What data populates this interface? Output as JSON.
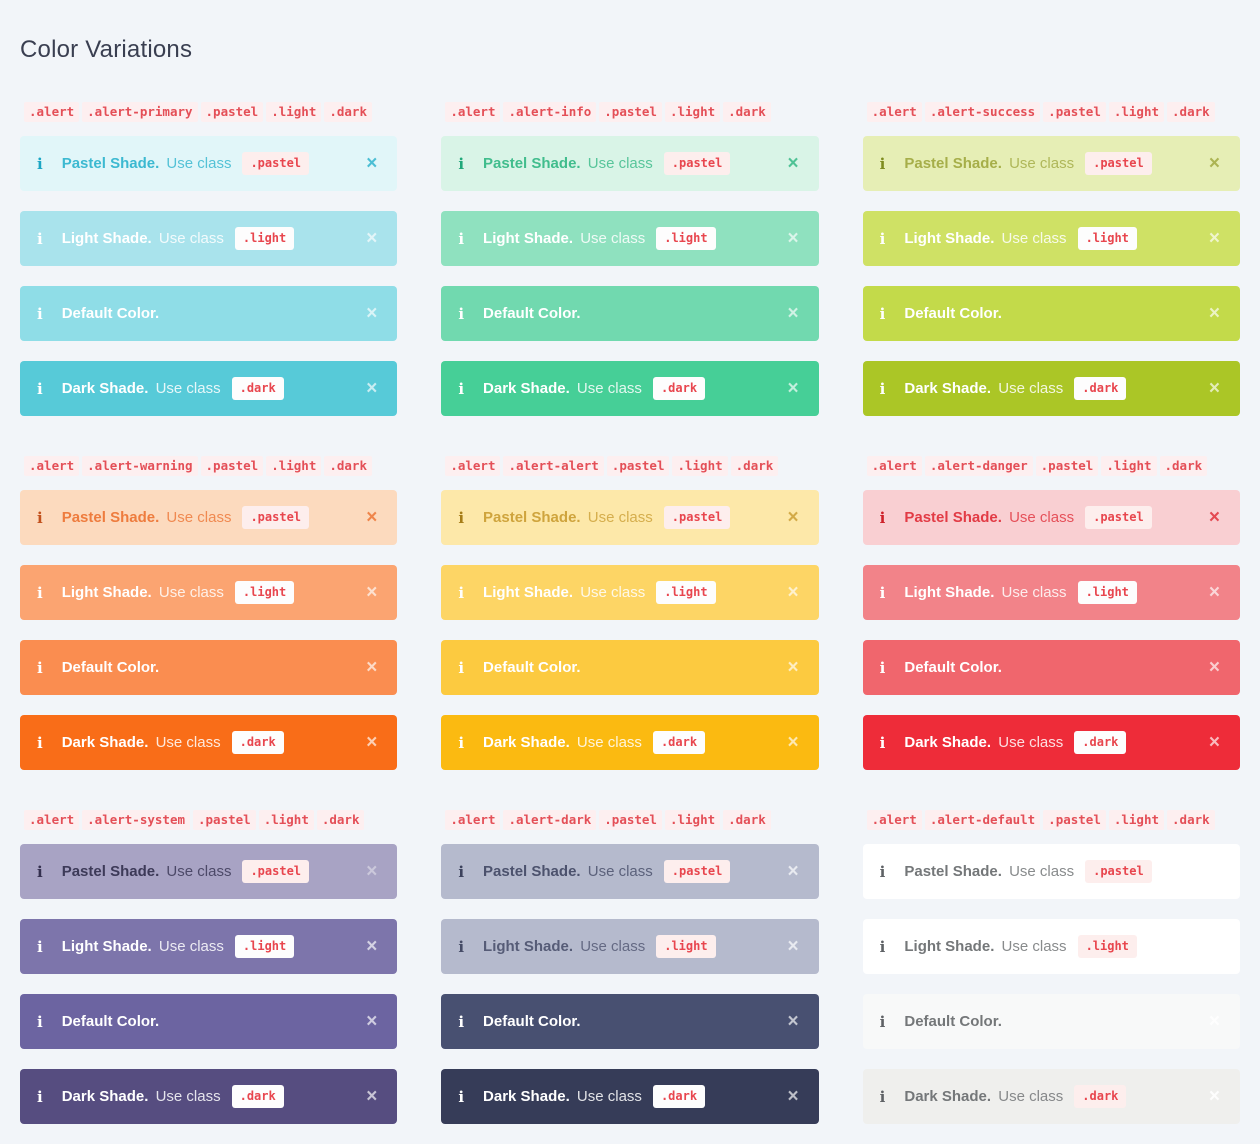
{
  "page": {
    "title": "Color Variations",
    "background": "#f2f5f9"
  },
  "icons": {
    "info": "i",
    "close": "×"
  },
  "code_style": {
    "fg": "#e44f57",
    "token_bg": "#fdeff0"
  },
  "groups": [
    {
      "id": "primary",
      "code_tokens": [
        ".alert",
        ".alert-primary",
        ".pastel",
        ".light",
        ".dark"
      ],
      "alerts": [
        {
          "variant": "pastel",
          "label": "Pastel Shade.",
          "use_class": "Use class",
          "badge": ".pastel",
          "bg": "#e1f6f9",
          "fg": "#3cb9d1",
          "icon": "#1ba6c4",
          "close": "#3cb9d1",
          "badge_bg": "#fdeeed",
          "badge_fg": "#e8464e"
        },
        {
          "variant": "light",
          "label": "Light Shade.",
          "use_class": "Use class",
          "badge": ".light",
          "bg": "#a9e3ec",
          "fg": "#ffffff",
          "icon": "#ffffff",
          "close": "#ffffffbf",
          "badge_bg": "#fdfdfd",
          "badge_fg": "#e8464e"
        },
        {
          "variant": "default",
          "label": "Default Color.",
          "use_class": "",
          "badge": "",
          "bg": "#8fdde7",
          "fg": "#ffffff",
          "icon": "#ffffff",
          "close": "#ffffffbf",
          "badge_bg": "",
          "badge_fg": ""
        },
        {
          "variant": "dark",
          "label": "Dark Shade.",
          "use_class": "Use class",
          "badge": ".dark",
          "bg": "#57cad8",
          "fg": "#ffffff",
          "icon": "#ffffff",
          "close": "#ffffffbf",
          "badge_bg": "#fdfdfd",
          "badge_fg": "#e8464e"
        }
      ]
    },
    {
      "id": "info",
      "code_tokens": [
        ".alert",
        ".alert-info",
        ".pastel",
        ".light",
        ".dark"
      ],
      "alerts": [
        {
          "variant": "pastel",
          "label": "Pastel Shade.",
          "use_class": "Use class",
          "badge": ".pastel",
          "bg": "#d9f4e7",
          "fg": "#41bd8d",
          "icon": "#21a87a",
          "close": "#41bd8d",
          "badge_bg": "#fdeeed",
          "badge_fg": "#e8464e"
        },
        {
          "variant": "light",
          "label": "Light Shade.",
          "use_class": "Use class",
          "badge": ".light",
          "bg": "#8fe1bf",
          "fg": "#ffffff",
          "icon": "#ffffff",
          "close": "#ffffffbf",
          "badge_bg": "#fdfdfd",
          "badge_fg": "#e8464e"
        },
        {
          "variant": "default",
          "label": "Default Color.",
          "use_class": "",
          "badge": "",
          "bg": "#71d9af",
          "fg": "#ffffff",
          "icon": "#ffffff",
          "close": "#ffffffbf",
          "badge_bg": "",
          "badge_fg": ""
        },
        {
          "variant": "dark",
          "label": "Dark Shade.",
          "use_class": "Use class",
          "badge": ".dark",
          "bg": "#46cf97",
          "fg": "#ffffff",
          "icon": "#ffffff",
          "close": "#ffffffbf",
          "badge_bg": "#fdfdfd",
          "badge_fg": "#e8464e"
        }
      ]
    },
    {
      "id": "success",
      "code_tokens": [
        ".alert",
        ".alert-success",
        ".pastel",
        ".light",
        ".dark"
      ],
      "alerts": [
        {
          "variant": "pastel",
          "label": "Pastel Shade.",
          "use_class": "Use class",
          "badge": ".pastel",
          "bg": "#e6eeb5",
          "fg": "#a6ae49",
          "icon": "#7e8c1f",
          "close": "#a6ae49",
          "badge_bg": "#fdeeed",
          "badge_fg": "#e8464e"
        },
        {
          "variant": "light",
          "label": "Light Shade.",
          "use_class": "Use class",
          "badge": ".light",
          "bg": "#cfe165",
          "fg": "#ffffff",
          "icon": "#ffffff",
          "close": "#ffffffbf",
          "badge_bg": "#fdfdfd",
          "badge_fg": "#e8464e"
        },
        {
          "variant": "default",
          "label": "Default Color.",
          "use_class": "",
          "badge": "",
          "bg": "#c3da4a",
          "fg": "#ffffff",
          "icon": "#ffffff",
          "close": "#ffffffbf",
          "badge_bg": "",
          "badge_fg": ""
        },
        {
          "variant": "dark",
          "label": "Dark Shade.",
          "use_class": "Use class",
          "badge": ".dark",
          "bg": "#abc626",
          "fg": "#ffffff",
          "icon": "#ffffff",
          "close": "#ffffffbf",
          "badge_bg": "#fdfdfd",
          "badge_fg": "#e8464e"
        }
      ]
    },
    {
      "id": "warning",
      "code_tokens": [
        ".alert",
        ".alert-warning",
        ".pastel",
        ".light",
        ".dark"
      ],
      "alerts": [
        {
          "variant": "pastel",
          "label": "Pastel Shade.",
          "use_class": "Use class",
          "badge": ".pastel",
          "bg": "#fcdabe",
          "fg": "#ee7c3e",
          "icon": "#c2511d",
          "close": "#ee7c3e",
          "badge_bg": "#fdeeed",
          "badge_fg": "#e8464e"
        },
        {
          "variant": "light",
          "label": "Light Shade.",
          "use_class": "Use class",
          "badge": ".light",
          "bg": "#fba471",
          "fg": "#ffffff",
          "icon": "#ffffff",
          "close": "#ffffffbf",
          "badge_bg": "#fdfdfd",
          "badge_fg": "#e8464e"
        },
        {
          "variant": "default",
          "label": "Default Color.",
          "use_class": "",
          "badge": "",
          "bg": "#fa8d50",
          "fg": "#ffffff",
          "icon": "#ffffff",
          "close": "#ffffffbf",
          "badge_bg": "",
          "badge_fg": ""
        },
        {
          "variant": "dark",
          "label": "Dark Shade.",
          "use_class": "Use class",
          "badge": ".dark",
          "bg": "#f96d18",
          "fg": "#ffffff",
          "icon": "#ffffff",
          "close": "#ffffffbf",
          "badge_bg": "#fdfdfd",
          "badge_fg": "#e8464e"
        }
      ]
    },
    {
      "id": "alert",
      "code_tokens": [
        ".alert",
        ".alert-alert",
        ".pastel",
        ".light",
        ".dark"
      ],
      "alerts": [
        {
          "variant": "pastel",
          "label": "Pastel Shade.",
          "use_class": "Use class",
          "badge": ".pastel",
          "bg": "#fde8a9",
          "fg": "#cfa43d",
          "icon": "#a67d18",
          "close": "#cfa43d",
          "badge_bg": "#fdeeed",
          "badge_fg": "#e8464e"
        },
        {
          "variant": "light",
          "label": "Light Shade.",
          "use_class": "Use class",
          "badge": ".light",
          "bg": "#fdd565",
          "fg": "#ffffff",
          "icon": "#ffffff",
          "close": "#ffffffbf",
          "badge_bg": "#fdfdfd",
          "badge_fg": "#e8464e"
        },
        {
          "variant": "default",
          "label": "Default Color.",
          "use_class": "",
          "badge": "",
          "bg": "#fcca40",
          "fg": "#ffffff",
          "icon": "#ffffff",
          "close": "#ffffffbf",
          "badge_bg": "",
          "badge_fg": ""
        },
        {
          "variant": "dark",
          "label": "Dark Shade.",
          "use_class": "Use class",
          "badge": ".dark",
          "bg": "#fbba11",
          "fg": "#ffffff",
          "icon": "#ffffff",
          "close": "#ffffffbf",
          "badge_bg": "#fdfdfd",
          "badge_fg": "#e8464e"
        }
      ]
    },
    {
      "id": "danger",
      "code_tokens": [
        ".alert",
        ".alert-danger",
        ".pastel",
        ".light",
        ".dark"
      ],
      "alerts": [
        {
          "variant": "pastel",
          "label": "Pastel Shade.",
          "use_class": "Use class",
          "badge": ".pastel",
          "bg": "#f9cfd2",
          "fg": "#e23b45",
          "icon": "#ce2129",
          "close": "#e23b45",
          "badge_bg": "#fdeeed",
          "badge_fg": "#e8464e"
        },
        {
          "variant": "light",
          "label": "Light Shade.",
          "use_class": "Use class",
          "badge": ".light",
          "bg": "#f28389",
          "fg": "#ffffff",
          "icon": "#ffffff",
          "close": "#ffffffbf",
          "badge_bg": "#fdfdfd",
          "badge_fg": "#e8464e"
        },
        {
          "variant": "default",
          "label": "Default Color.",
          "use_class": "",
          "badge": "",
          "bg": "#f0666d",
          "fg": "#ffffff",
          "icon": "#ffffff",
          "close": "#ffffffbf",
          "badge_bg": "",
          "badge_fg": ""
        },
        {
          "variant": "dark",
          "label": "Dark Shade.",
          "use_class": "Use class",
          "badge": ".dark",
          "bg": "#ee2c39",
          "fg": "#ffffff",
          "icon": "#ffffff",
          "close": "#ffffffbf",
          "badge_bg": "#fdfdfd",
          "badge_fg": "#e8464e"
        }
      ]
    },
    {
      "id": "system",
      "code_tokens": [
        ".alert",
        ".alert-system",
        ".pastel",
        ".light",
        ".dark"
      ],
      "alerts": [
        {
          "variant": "pastel",
          "label": "Pastel Shade.",
          "use_class": "Use class",
          "badge": ".pastel",
          "bg": "#a8a3c4",
          "fg": "#3d3a58",
          "icon": "#34304f",
          "close": "#cfcdde",
          "badge_bg": "#fdeeed",
          "badge_fg": "#e8464e"
        },
        {
          "variant": "light",
          "label": "Light Shade.",
          "use_class": "Use class",
          "badge": ".light",
          "bg": "#7d75ab",
          "fg": "#ffffff",
          "icon": "#ffffff",
          "close": "#ffffffbf",
          "badge_bg": "#fdfdfd",
          "badge_fg": "#e8464e"
        },
        {
          "variant": "default",
          "label": "Default Color.",
          "use_class": "",
          "badge": "",
          "bg": "#6c64a1",
          "fg": "#ffffff",
          "icon": "#ffffff",
          "close": "#ffffffbf",
          "badge_bg": "",
          "badge_fg": ""
        },
        {
          "variant": "dark",
          "label": "Dark Shade.",
          "use_class": "Use class",
          "badge": ".dark",
          "bg": "#564d80",
          "fg": "#ffffff",
          "icon": "#ffffff",
          "close": "#ffffffbf",
          "badge_bg": "#fdfdfd",
          "badge_fg": "#e8464e"
        }
      ]
    },
    {
      "id": "dark",
      "code_tokens": [
        ".alert",
        ".alert-dark",
        ".pastel",
        ".light",
        ".dark"
      ],
      "alerts": [
        {
          "variant": "pastel",
          "label": "Pastel Shade.",
          "use_class": "Use class",
          "badge": ".pastel",
          "bg": "#b5bacd",
          "fg": "#4c526d",
          "icon": "#3c425c",
          "close": "#eef0f4",
          "badge_bg": "#fdeeed",
          "badge_fg": "#e8464e"
        },
        {
          "variant": "light",
          "label": "Light Shade.",
          "use_class": "Use class",
          "badge": ".light",
          "bg": "#b5bacd",
          "fg": "#565c77",
          "icon": "#454b66",
          "close": "#eef0f4",
          "badge_bg": "#fdeeed",
          "badge_fg": "#e8464e"
        },
        {
          "variant": "default",
          "label": "Default Color.",
          "use_class": "",
          "badge": "",
          "bg": "#485071",
          "fg": "#ffffff",
          "icon": "#ffffff",
          "close": "#ffffffbf",
          "badge_bg": "",
          "badge_fg": ""
        },
        {
          "variant": "dark",
          "label": "Dark Shade.",
          "use_class": "Use class",
          "badge": ".dark",
          "bg": "#363c58",
          "fg": "#ffffff",
          "icon": "#ffffff",
          "close": "#ffffffbf",
          "badge_bg": "#fdfdfd",
          "badge_fg": "#e8464e"
        }
      ]
    },
    {
      "id": "default",
      "code_tokens": [
        ".alert",
        ".alert-default",
        ".pastel",
        ".light",
        ".dark"
      ],
      "alerts": [
        {
          "variant": "pastel",
          "label": "Pastel Shade.",
          "use_class": "Use class",
          "badge": ".pastel",
          "bg": "#ffffff",
          "fg": "#747779",
          "icon": "#5e6165",
          "close": "#ffffff",
          "badge_bg": "#fdeeed",
          "badge_fg": "#e8464e"
        },
        {
          "variant": "light",
          "label": "Light Shade.",
          "use_class": "Use class",
          "badge": ".light",
          "bg": "#ffffff",
          "fg": "#747779",
          "icon": "#5e6165",
          "close": "#ffffff",
          "badge_bg": "#fdeeed",
          "badge_fg": "#e8464e"
        },
        {
          "variant": "default",
          "label": "Default Color.",
          "use_class": "",
          "badge": "",
          "bg": "#f8f9f9",
          "fg": "#747779",
          "icon": "#5e6165",
          "close": "#ffffff",
          "badge_bg": "",
          "badge_fg": ""
        },
        {
          "variant": "dark",
          "label": "Dark Shade.",
          "use_class": "Use class",
          "badge": ".dark",
          "bg": "#efefed",
          "fg": "#747779",
          "icon": "#5e6165",
          "close": "#ffffff",
          "badge_bg": "#fdeeed",
          "badge_fg": "#e8464e"
        }
      ]
    }
  ]
}
